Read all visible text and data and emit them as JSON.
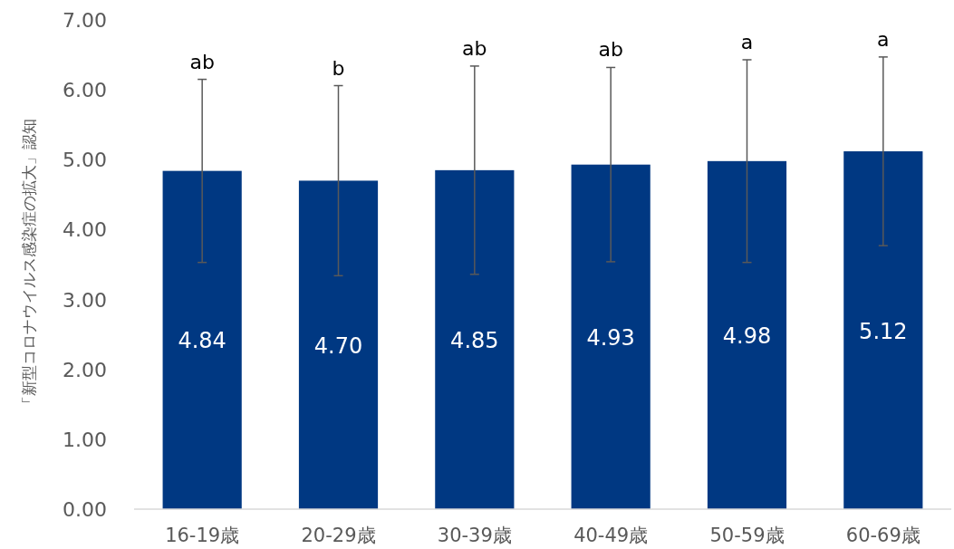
{
  "chart_data": {
    "type": "bar",
    "ylabel": "「新型コロナウイルス感染症の拡大」認知",
    "categories": [
      "16-19歳",
      "20-29歳",
      "30-39歳",
      "40-49歳",
      "50-59歳",
      "60-69歳"
    ],
    "values": [
      4.84,
      4.7,
      4.85,
      4.93,
      4.98,
      5.12
    ],
    "value_labels": [
      "4.84",
      "4.70",
      "4.85",
      "4.93",
      "4.98",
      "5.12"
    ],
    "errors": [
      1.31,
      1.36,
      1.49,
      1.39,
      1.45,
      1.35
    ],
    "color": "#003882",
    "ylim": [
      0,
      7
    ],
    "yticks": [
      {
        "value": 0,
        "label": "0.00"
      },
      {
        "value": 1,
        "label": "1.00"
      },
      {
        "value": 2,
        "label": "2.00"
      },
      {
        "value": 3,
        "label": "3.00"
      },
      {
        "value": 4,
        "label": "4.00"
      },
      {
        "value": 5,
        "label": "5.00"
      },
      {
        "value": 6,
        "label": "6.00"
      },
      {
        "value": 7,
        "label": "7.00"
      }
    ],
    "annotations": [
      "ab",
      "b",
      "ab",
      "ab",
      "a",
      "a"
    ],
    "grid": false
  }
}
